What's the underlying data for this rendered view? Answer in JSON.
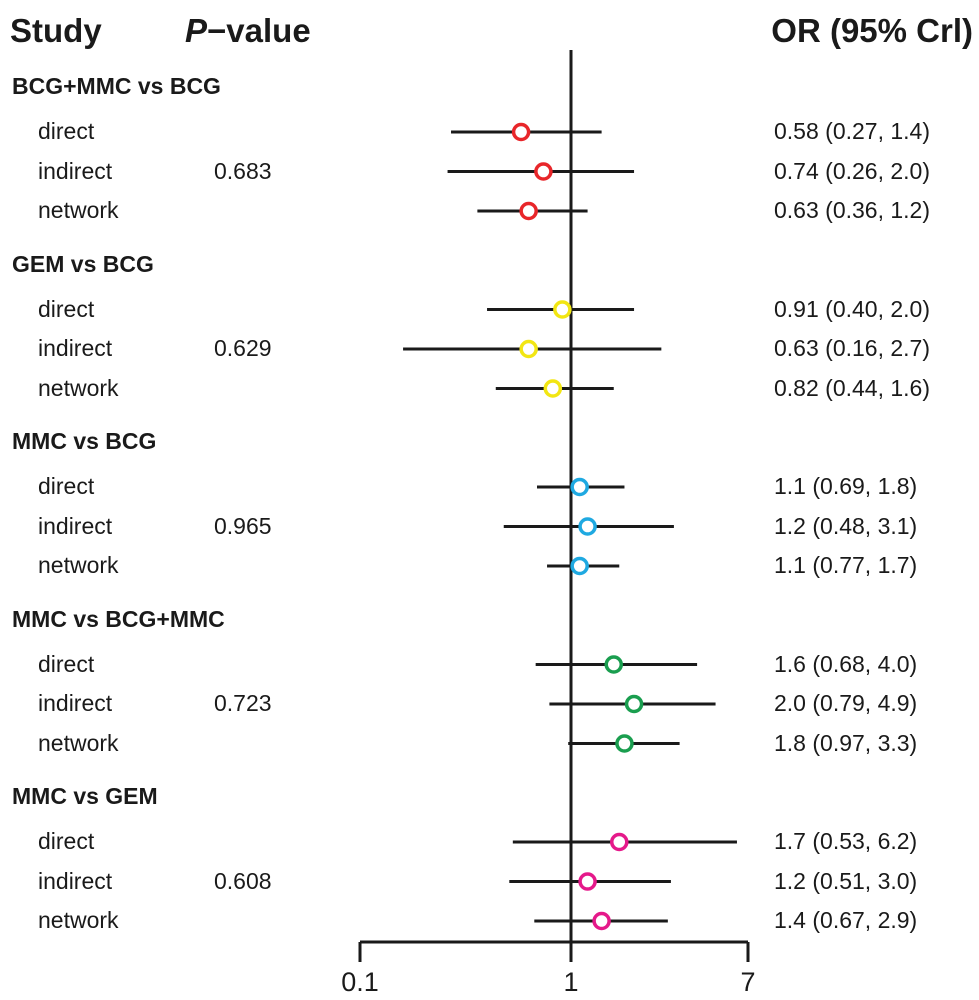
{
  "headers": {
    "study": "Study",
    "p_italic": "P",
    "p_rest": "−value",
    "or": "OR (95% Crl)"
  },
  "colors": {
    "BCG+MMC vs BCG": "#e8262a",
    "GEM vs BCG": "#f2e613",
    "MMC vs BCG": "#1fa9e1",
    "MMC vs BCG+MMC": "#1a9e4f",
    "MMC vs GEM": "#e5198a"
  },
  "chart_data": {
    "type": "forest",
    "x_scale": "log",
    "xlim": [
      0.1,
      7
    ],
    "reference_line": 1,
    "x_ticks": [
      "0.1",
      "1",
      "7"
    ],
    "groups": [
      {
        "name": "BCG+MMC vs BCG",
        "p_value": "0.683",
        "rows": [
          {
            "label": "direct",
            "or": 0.58,
            "lo": 0.27,
            "hi": 1.4,
            "text": "0.58 (0.27, 1.4)"
          },
          {
            "label": "indirect",
            "or": 0.74,
            "lo": 0.26,
            "hi": 2.0,
            "text": "0.74 (0.26, 2.0)"
          },
          {
            "label": "network",
            "or": 0.63,
            "lo": 0.36,
            "hi": 1.2,
            "text": "0.63 (0.36, 1.2)"
          }
        ]
      },
      {
        "name": "GEM vs BCG",
        "p_value": "0.629",
        "rows": [
          {
            "label": "direct",
            "or": 0.91,
            "lo": 0.4,
            "hi": 2.0,
            "text": "0.91 (0.40, 2.0)"
          },
          {
            "label": "indirect",
            "or": 0.63,
            "lo": 0.16,
            "hi": 2.7,
            "text": "0.63 (0.16, 2.7)"
          },
          {
            "label": "network",
            "or": 0.82,
            "lo": 0.44,
            "hi": 1.6,
            "text": "0.82 (0.44, 1.6)"
          }
        ]
      },
      {
        "name": "MMC vs BCG",
        "p_value": "0.965",
        "rows": [
          {
            "label": "direct",
            "or": 1.1,
            "lo": 0.69,
            "hi": 1.8,
            "text": "1.1 (0.69, 1.8)"
          },
          {
            "label": "indirect",
            "or": 1.2,
            "lo": 0.48,
            "hi": 3.1,
            "text": "1.2 (0.48, 3.1)"
          },
          {
            "label": "network",
            "or": 1.1,
            "lo": 0.77,
            "hi": 1.7,
            "text": "1.1 (0.77, 1.7)"
          }
        ]
      },
      {
        "name": "MMC vs BCG+MMC",
        "p_value": "0.723",
        "rows": [
          {
            "label": "direct",
            "or": 1.6,
            "lo": 0.68,
            "hi": 4.0,
            "text": "1.6 (0.68, 4.0)"
          },
          {
            "label": "indirect",
            "or": 2.0,
            "lo": 0.79,
            "hi": 4.9,
            "text": "2.0 (0.79, 4.9)"
          },
          {
            "label": "network",
            "or": 1.8,
            "lo": 0.97,
            "hi": 3.3,
            "text": "1.8 (0.97, 3.3)"
          }
        ]
      },
      {
        "name": "MMC vs GEM",
        "p_value": "0.608",
        "rows": [
          {
            "label": "direct",
            "or": 1.7,
            "lo": 0.53,
            "hi": 6.2,
            "text": "1.7 (0.53, 6.2)"
          },
          {
            "label": "indirect",
            "or": 1.2,
            "lo": 0.51,
            "hi": 3.0,
            "text": "1.2 (0.51, 3.0)"
          },
          {
            "label": "network",
            "or": 1.4,
            "lo": 0.67,
            "hi": 2.9,
            "text": "1.4 (0.67, 2.9)"
          }
        ]
      }
    ]
  }
}
